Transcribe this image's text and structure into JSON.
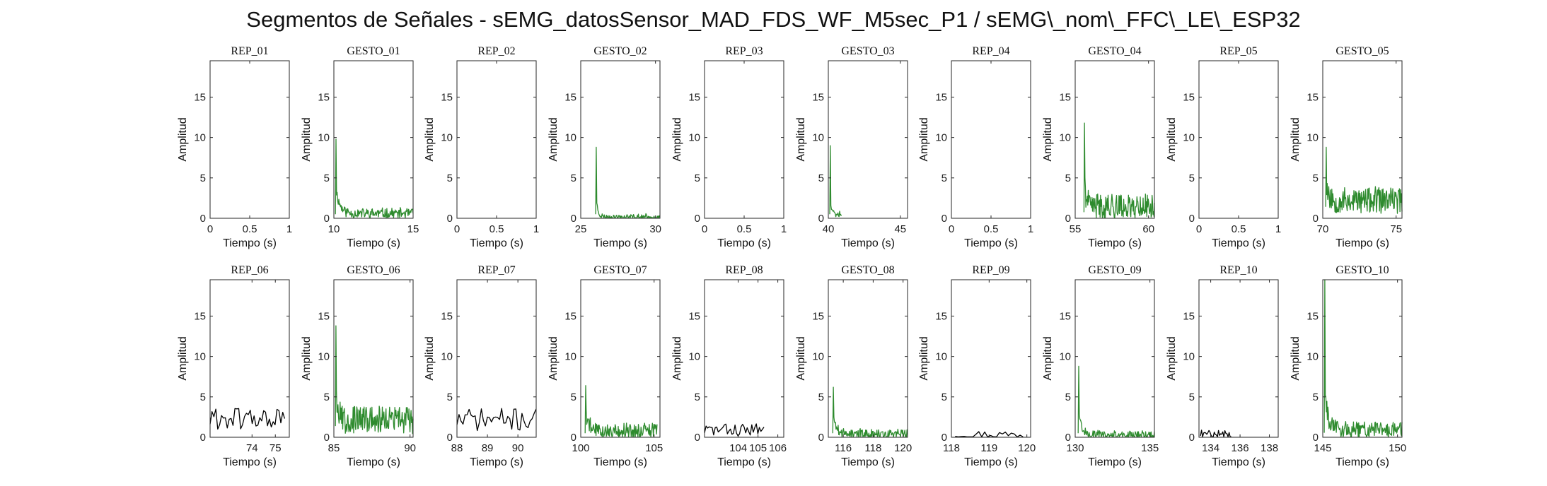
{
  "figure": {
    "title": "Segmentos de Señales - sEMG_datosSensor_MAD_FDS_WF_M5sec_P1 / sEMG\\_nom\\_FFC\\_LE\\_ESP32"
  },
  "colors": {
    "rep": "#000000",
    "gesto": "#2e8b2e",
    "axis": "#262626"
  },
  "chart_data": [
    {
      "type": "line",
      "title": "REP_01",
      "xlabel": "Tiempo (s)",
      "ylabel": "Amplitud",
      "xlim": [
        0,
        1
      ],
      "ylim": [
        0,
        19.5
      ],
      "xticks": [
        0,
        0.5,
        1
      ],
      "xtick_labels": [
        "0",
        "0.5",
        "1"
      ],
      "yticks": [
        0,
        5,
        10,
        15
      ],
      "ytick_labels": [
        "0",
        "5",
        "10",
        "15"
      ],
      "color": "rep",
      "series": []
    },
    {
      "type": "line",
      "title": "GESTO_01",
      "xlabel": "Tiempo (s)",
      "ylabel": "Amplitud",
      "xlim": [
        10,
        15
      ],
      "ylim": [
        0,
        19.5
      ],
      "xticks": [
        10,
        15
      ],
      "xtick_labels": [
        "10",
        "15"
      ],
      "yticks": [
        0,
        5,
        10,
        15
      ],
      "ytick_labels": [
        "0",
        "5",
        "10",
        "15"
      ],
      "color": "gesto",
      "series": [
        {
          "x": [
            10,
            15
          ],
          "start": 10.1,
          "end": 15,
          "n": 140,
          "peak": 9.8,
          "decay": 0.25,
          "base": 0.6,
          "noise": 0.6,
          "seed": 11
        }
      ]
    },
    {
      "type": "line",
      "title": "REP_02",
      "xlabel": "Tiempo (s)",
      "ylabel": "Amplitud",
      "xlim": [
        0,
        1
      ],
      "ylim": [
        0,
        19.5
      ],
      "xticks": [
        0,
        0.5,
        1
      ],
      "xtick_labels": [
        "0",
        "0.5",
        "1"
      ],
      "yticks": [
        0,
        5,
        10,
        15
      ],
      "ytick_labels": [
        "0",
        "5",
        "10",
        "15"
      ],
      "color": "rep",
      "series": []
    },
    {
      "type": "line",
      "title": "GESTO_02",
      "xlabel": "Tiempo (s)",
      "ylabel": "Amplitud",
      "xlim": [
        25,
        30.3
      ],
      "ylim": [
        0,
        19.5
      ],
      "xticks": [
        25,
        30
      ],
      "xtick_labels": [
        "25",
        "30"
      ],
      "yticks": [
        0,
        5,
        10,
        15
      ],
      "ytick_labels": [
        "0",
        "5",
        "10",
        "15"
      ],
      "color": "gesto",
      "series": [
        {
          "start": 26,
          "end": 30.3,
          "n": 120,
          "peak": 8.8,
          "decay": 0.12,
          "base": 0.15,
          "noise": 0.3,
          "seed": 23
        }
      ]
    },
    {
      "type": "line",
      "title": "REP_03",
      "xlabel": "Tiempo (s)",
      "ylabel": "Amplitud",
      "xlim": [
        0,
        1
      ],
      "ylim": [
        0,
        19.5
      ],
      "xticks": [
        0,
        0.5,
        1
      ],
      "xtick_labels": [
        "0",
        "0.5",
        "1"
      ],
      "yticks": [
        0,
        5,
        10,
        15
      ],
      "ytick_labels": [
        "0",
        "5",
        "10",
        "15"
      ],
      "color": "rep",
      "series": []
    },
    {
      "type": "line",
      "title": "GESTO_03",
      "xlabel": "Tiempo (s)",
      "ylabel": "Amplitud",
      "xlim": [
        40,
        45.5
      ],
      "ylim": [
        0,
        19.5
      ],
      "xticks": [
        40,
        45
      ],
      "xtick_labels": [
        "40",
        "45"
      ],
      "yticks": [
        0,
        5,
        10,
        15
      ],
      "ytick_labels": [
        "0",
        "5",
        "10",
        "15"
      ],
      "color": "gesto",
      "series": [
        {
          "start": 40.1,
          "end": 40.9,
          "n": 22,
          "peak": 9,
          "decay": 0.1,
          "base": 0.6,
          "noise": 0.5,
          "seed": 37
        }
      ]
    },
    {
      "type": "line",
      "title": "REP_04",
      "xlabel": "Tiempo (s)",
      "ylabel": "Amplitud",
      "xlim": [
        0,
        1
      ],
      "ylim": [
        0,
        19.5
      ],
      "xticks": [
        0,
        0.5,
        1
      ],
      "xtick_labels": [
        "0",
        "0.5",
        "1"
      ],
      "yticks": [
        0,
        5,
        10,
        15
      ],
      "ytick_labels": [
        "0",
        "5",
        "10",
        "15"
      ],
      "color": "rep",
      "series": []
    },
    {
      "type": "line",
      "title": "GESTO_04",
      "xlabel": "Tiempo (s)",
      "ylabel": "Amplitud",
      "xlim": [
        55,
        60.4
      ],
      "ylim": [
        0,
        19.5
      ],
      "xticks": [
        55,
        60
      ],
      "xtick_labels": [
        "55",
        "60"
      ],
      "yticks": [
        0,
        5,
        10,
        15
      ],
      "ytick_labels": [
        "0",
        "5",
        "10",
        "15"
      ],
      "color": "gesto",
      "series": [
        {
          "start": 55.6,
          "end": 60.4,
          "n": 150,
          "peak": 11.8,
          "decay": 0.12,
          "base": 1.5,
          "noise": 1.5,
          "seed": 41
        }
      ]
    },
    {
      "type": "line",
      "title": "REP_05",
      "xlabel": "Tiempo (s)",
      "ylabel": "Amplitud",
      "xlim": [
        0,
        1
      ],
      "ylim": [
        0,
        19.5
      ],
      "xticks": [
        0,
        0.5,
        1
      ],
      "xtick_labels": [
        "0",
        "0.5",
        "1"
      ],
      "yticks": [
        0,
        5,
        10,
        15
      ],
      "ytick_labels": [
        "0",
        "5",
        "10",
        "15"
      ],
      "color": "rep",
      "series": []
    },
    {
      "type": "line",
      "title": "GESTO_05",
      "xlabel": "Tiempo (s)",
      "ylabel": "Amplitud",
      "xlim": [
        70,
        75.4
      ],
      "ylim": [
        0,
        19.5
      ],
      "xticks": [
        70,
        75
      ],
      "xtick_labels": [
        "70",
        "75"
      ],
      "yticks": [
        0,
        5,
        10,
        15
      ],
      "ytick_labels": [
        "0",
        "5",
        "10",
        "15"
      ],
      "color": "gesto",
      "series": [
        {
          "start": 70.2,
          "end": 75.4,
          "n": 150,
          "peak": 8.8,
          "decay": 0.15,
          "base": 2.2,
          "noise": 1.6,
          "seed": 53
        }
      ]
    },
    {
      "type": "line",
      "title": "REP_06",
      "xlabel": "Tiempo (s)",
      "ylabel": "Amplitud",
      "xlim": [
        72.2,
        75.6
      ],
      "ylim": [
        0,
        19.5
      ],
      "xticks": [
        74,
        75
      ],
      "xtick_labels": [
        "74",
        "75"
      ],
      "yticks": [
        0,
        5,
        10,
        15
      ],
      "ytick_labels": [
        "0",
        "5",
        "10",
        "15"
      ],
      "color": "rep",
      "series": [
        {
          "start": 72.2,
          "end": 75.4,
          "n": 40,
          "peak": 0,
          "decay": 0.1,
          "base": 2.3,
          "noise": 1.4,
          "seed": 61
        }
      ]
    },
    {
      "type": "line",
      "title": "GESTO_06",
      "xlabel": "Tiempo (s)",
      "ylabel": "Amplitud",
      "xlim": [
        85,
        90.2
      ],
      "ylim": [
        0,
        19.5
      ],
      "xticks": [
        85,
        90
      ],
      "xtick_labels": [
        "85",
        "90"
      ],
      "yticks": [
        0,
        5,
        10,
        15
      ],
      "ytick_labels": [
        "0",
        "5",
        "10",
        "15"
      ],
      "color": "gesto",
      "series": [
        {
          "start": 85.1,
          "end": 90.2,
          "n": 150,
          "peak": 13.8,
          "decay": 0.15,
          "base": 2.2,
          "noise": 1.7,
          "seed": 67
        }
      ]
    },
    {
      "type": "line",
      "title": "REP_07",
      "xlabel": "Tiempo (s)",
      "ylabel": "Amplitud",
      "xlim": [
        88,
        90.6
      ],
      "ylim": [
        0,
        19.5
      ],
      "xticks": [
        88,
        89,
        90
      ],
      "xtick_labels": [
        "88",
        "89",
        "90"
      ],
      "yticks": [
        0,
        5,
        10,
        15
      ],
      "ytick_labels": [
        "0",
        "5",
        "10",
        "15"
      ],
      "color": "rep",
      "series": [
        {
          "start": 88,
          "end": 90.6,
          "n": 40,
          "peak": 0,
          "decay": 0.1,
          "base": 2.2,
          "noise": 1.4,
          "seed": 71
        }
      ]
    },
    {
      "type": "line",
      "title": "GESTO_07",
      "xlabel": "Tiempo (s)",
      "ylabel": "Amplitud",
      "xlim": [
        100,
        105.4
      ],
      "ylim": [
        0,
        19.5
      ],
      "xticks": [
        100,
        105
      ],
      "xtick_labels": [
        "100",
        "105"
      ],
      "yticks": [
        0,
        5,
        10,
        15
      ],
      "ytick_labels": [
        "0",
        "5",
        "10",
        "15"
      ],
      "color": "gesto",
      "series": [
        {
          "start": 100.3,
          "end": 105.2,
          "n": 140,
          "peak": 6.4,
          "decay": 0.3,
          "base": 0.8,
          "noise": 0.9,
          "seed": 79
        }
      ]
    },
    {
      "type": "line",
      "title": "REP_08",
      "xlabel": "Tiempo (s)",
      "ylabel": "Amplitud",
      "xlim": [
        102.3,
        106.3
      ],
      "ylim": [
        0,
        19.5
      ],
      "xticks": [
        104,
        105,
        106
      ],
      "xtick_labels": [
        "104",
        "105",
        "106"
      ],
      "yticks": [
        0,
        5,
        10,
        15
      ],
      "ytick_labels": [
        "0",
        "5",
        "10",
        "15"
      ],
      "color": "rep",
      "series": [
        {
          "start": 102.3,
          "end": 105.3,
          "n": 40,
          "peak": 0,
          "decay": 0.1,
          "base": 0.9,
          "noise": 0.8,
          "seed": 83
        }
      ]
    },
    {
      "type": "line",
      "title": "GESTO_08",
      "xlabel": "Tiempo (s)",
      "ylabel": "Amplitud",
      "xlim": [
        115,
        120.3
      ],
      "ylim": [
        0,
        19.5
      ],
      "xticks": [
        116,
        118,
        120
      ],
      "xtick_labels": [
        "116",
        "118",
        "120"
      ],
      "yticks": [
        0,
        5,
        10,
        15
      ],
      "ytick_labels": [
        "0",
        "5",
        "10",
        "15"
      ],
      "color": "gesto",
      "series": [
        {
          "start": 115.3,
          "end": 120.3,
          "n": 140,
          "peak": 6.2,
          "decay": 0.25,
          "base": 0.4,
          "noise": 0.6,
          "seed": 89
        }
      ]
    },
    {
      "type": "line",
      "title": "REP_09",
      "xlabel": "Tiempo (s)",
      "ylabel": "Amplitud",
      "xlim": [
        118,
        120.1
      ],
      "ylim": [
        0,
        19.5
      ],
      "xticks": [
        118,
        119,
        120
      ],
      "xtick_labels": [
        "118",
        "119",
        "120"
      ],
      "yticks": [
        0,
        5,
        10,
        15
      ],
      "ytick_labels": [
        "0",
        "5",
        "10",
        "15"
      ],
      "color": "rep",
      "series": [
        {
          "start": 118.1,
          "end": 119.9,
          "n": 24,
          "peak": 0,
          "decay": 0.1,
          "base": 0.35,
          "noise": 0.5,
          "seed": 97
        }
      ]
    },
    {
      "type": "line",
      "title": "GESTO_09",
      "xlabel": "Tiempo (s)",
      "ylabel": "Amplitud",
      "xlim": [
        130,
        135.3
      ],
      "ylim": [
        0,
        19.5
      ],
      "xticks": [
        130,
        135
      ],
      "xtick_labels": [
        "130",
        "135"
      ],
      "yticks": [
        0,
        5,
        10,
        15
      ],
      "ytick_labels": [
        "0",
        "5",
        "10",
        "15"
      ],
      "color": "gesto",
      "series": [
        {
          "start": 130.2,
          "end": 135.3,
          "n": 140,
          "peak": 8.8,
          "decay": 0.22,
          "base": 0.3,
          "noise": 0.5,
          "seed": 101
        }
      ]
    },
    {
      "type": "line",
      "title": "REP_10",
      "xlabel": "Tiempo (s)",
      "ylabel": "Amplitud",
      "xlim": [
        133.2,
        138.6
      ],
      "ylim": [
        0,
        19.5
      ],
      "xticks": [
        134,
        136,
        138
      ],
      "xtick_labels": [
        "134",
        "136",
        "138"
      ],
      "yticks": [
        0,
        5,
        10,
        15
      ],
      "ytick_labels": [
        "0",
        "5",
        "10",
        "15"
      ],
      "color": "rep",
      "series": [
        {
          "start": 133.3,
          "end": 135.4,
          "n": 30,
          "peak": 0,
          "decay": 0.1,
          "base": 0.4,
          "noise": 0.5,
          "seed": 107
        }
      ]
    },
    {
      "type": "line",
      "title": "GESTO_10",
      "xlabel": "Tiempo (s)",
      "ylabel": "Amplitud",
      "xlim": [
        145,
        150.3
      ],
      "ylim": [
        0,
        19.5
      ],
      "xticks": [
        145,
        150
      ],
      "xtick_labels": [
        "145",
        "150"
      ],
      "yticks": [
        0,
        5,
        10,
        15
      ],
      "ytick_labels": [
        "0",
        "5",
        "10",
        "15"
      ],
      "color": "gesto",
      "series": [
        {
          "start": 145.1,
          "end": 150.3,
          "n": 150,
          "peak": 19.5,
          "decay": 0.18,
          "base": 1.0,
          "noise": 1.0,
          "seed": 113
        }
      ]
    }
  ]
}
